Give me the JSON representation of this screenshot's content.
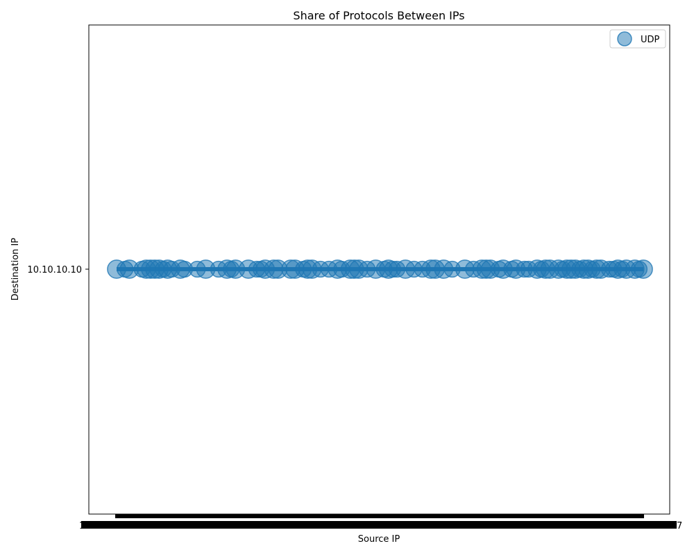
{
  "chart_data": {
    "type": "scatter",
    "title": "Share of Protocols Between IPs",
    "xlabel": "Source IP",
    "ylabel": "Destination IP",
    "y_categories": [
      "10.10.10.10"
    ],
    "x_tick_label_first": "1",
    "x_tick_label_last": "7",
    "grid": false,
    "legend_position": "top-right",
    "series": [
      {
        "name": "UDP",
        "color": "#1f77b4",
        "destination_ip": "10.10.10.10",
        "x_index": [
          0,
          2,
          3,
          6,
          7,
          8,
          9,
          10,
          11,
          12,
          13,
          15,
          16,
          19,
          21,
          24,
          26,
          27,
          28,
          31,
          33,
          34,
          35,
          37,
          38,
          41,
          42,
          44,
          45,
          46,
          48,
          50,
          52,
          53,
          55,
          56,
          57,
          59,
          61,
          63,
          64,
          65,
          66,
          68,
          70,
          72,
          74,
          75,
          77,
          79,
          82,
          84,
          86,
          87,
          88,
          90,
          91,
          93,
          94,
          96,
          97,
          99,
          100,
          101,
          102,
          104,
          105,
          106,
          107,
          108,
          109,
          110,
          111,
          112,
          113,
          114,
          116,
          117,
          118,
          119,
          120,
          122,
          123,
          124
        ],
        "bubble_size": [
          3,
          2,
          3,
          2,
          3,
          3,
          3,
          3,
          2,
          3,
          2,
          3,
          2,
          2,
          3,
          2,
          3,
          2,
          3,
          3,
          2,
          2,
          3,
          3,
          3,
          3,
          3,
          2,
          3,
          3,
          2,
          2,
          3,
          2,
          3,
          3,
          3,
          2,
          3,
          2,
          3,
          2,
          2,
          3,
          2,
          2,
          3,
          3,
          3,
          2,
          3,
          2,
          3,
          3,
          3,
          2,
          3,
          2,
          3,
          2,
          2,
          3,
          2,
          3,
          3,
          3,
          2,
          3,
          3,
          3,
          2,
          3,
          3,
          2,
          3,
          3,
          2,
          2,
          3,
          2,
          3,
          3,
          2,
          3
        ]
      }
    ]
  }
}
